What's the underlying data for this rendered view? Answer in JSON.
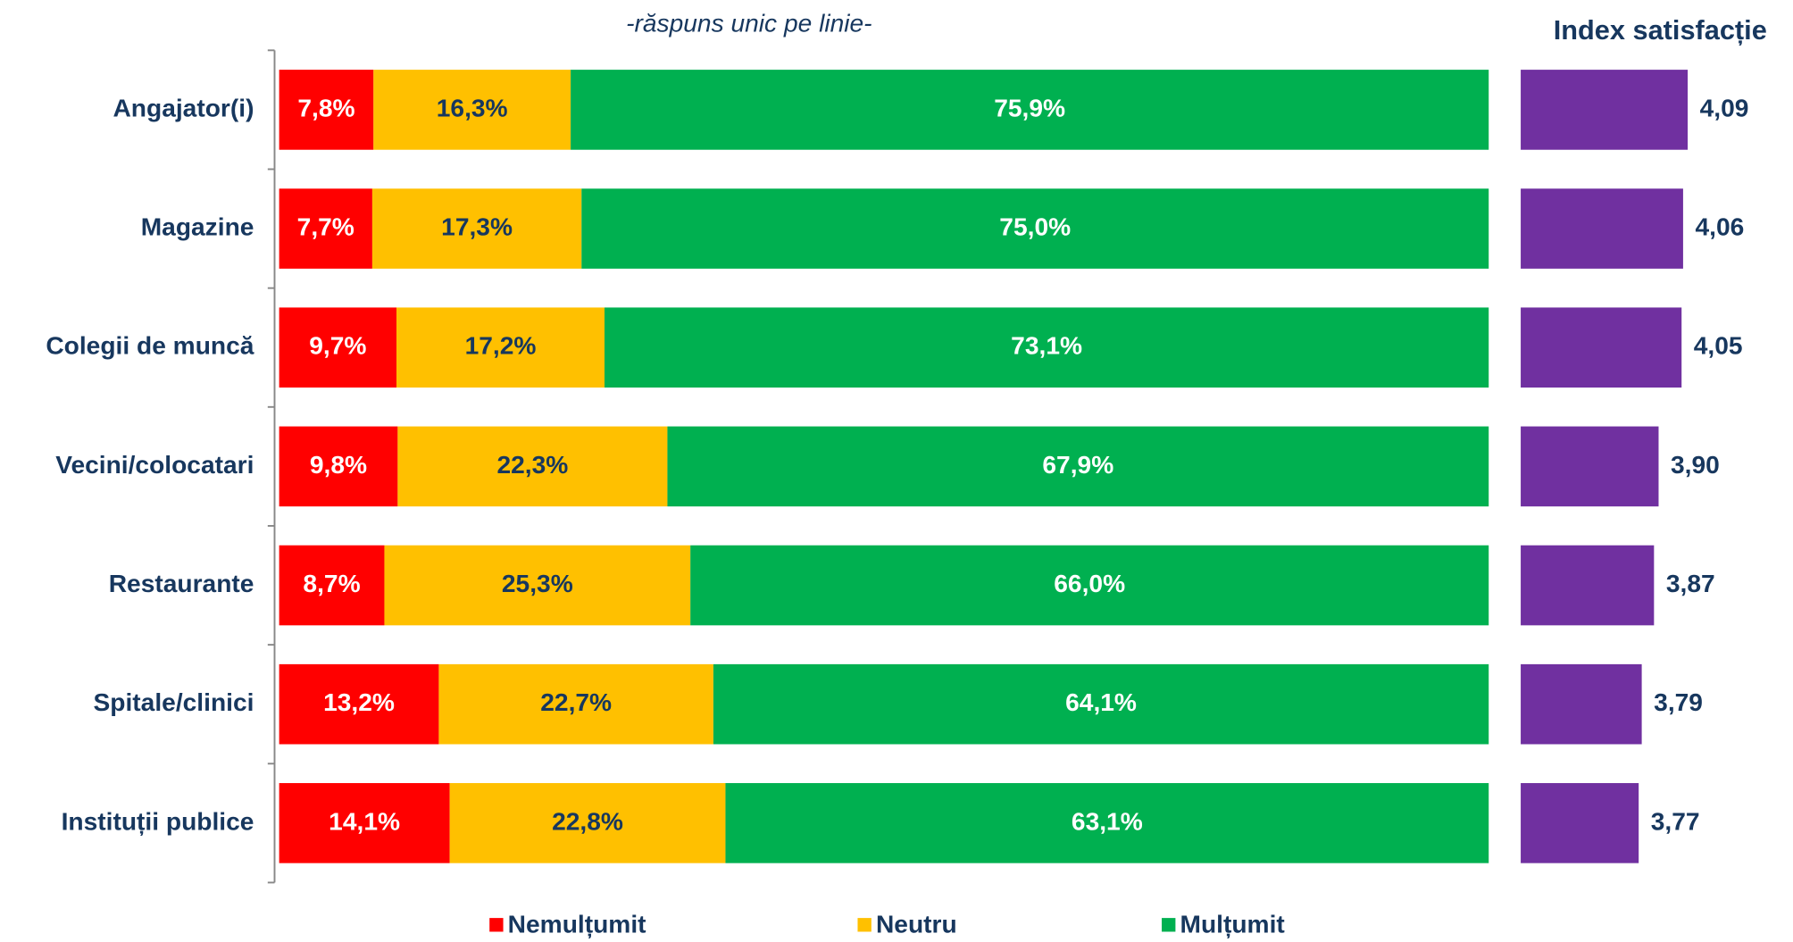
{
  "chart_data": [
    {
      "type": "stacked-bar-horizontal",
      "subtitle": "-răspuns unic pe linie-",
      "categories": [
        "Angajator(i)",
        "Magazine",
        "Colegii de muncă",
        "Vecini/colocatari",
        "Restaurante",
        "Spitale/clinici",
        "Instituții publice"
      ],
      "series": [
        {
          "name": "Nemulțumit",
          "color": "#ff0000",
          "values": [
            7.8,
            7.7,
            9.7,
            9.8,
            8.7,
            13.2,
            14.1
          ],
          "value_labels": [
            "7,8%",
            "7,7%",
            "9,7%",
            "9,8%",
            "8,7%",
            "13,2%",
            "14,1%"
          ]
        },
        {
          "name": "Neutru",
          "color": "#ffc000",
          "values": [
            16.3,
            17.3,
            17.2,
            22.3,
            25.3,
            22.7,
            22.8
          ],
          "value_labels": [
            "16,3%",
            "17,3%",
            "17,2%",
            "22,3%",
            "25,3%",
            "22,7%",
            "22,8%"
          ]
        },
        {
          "name": "Mulțumit",
          "color": "#00b050",
          "values": [
            75.9,
            75.0,
            73.1,
            67.9,
            66.0,
            64.1,
            63.1
          ],
          "value_labels": [
            "75,9%",
            "75,0%",
            "73,1%",
            "67,9%",
            "66,0%",
            "64,1%",
            "63,1%"
          ]
        }
      ],
      "xlim": [
        0,
        100
      ]
    },
    {
      "type": "bar-horizontal",
      "title": "Index satisfacție",
      "values": [
        4.09,
        4.06,
        4.05,
        3.9,
        3.87,
        3.79,
        3.77
      ],
      "value_labels": [
        "4,09",
        "4,06",
        "4,05",
        "3,90",
        "3,87",
        "3,79",
        "3,77"
      ],
      "color": "#7030a0",
      "xlim": [
        3,
        4.5
      ]
    }
  ]
}
